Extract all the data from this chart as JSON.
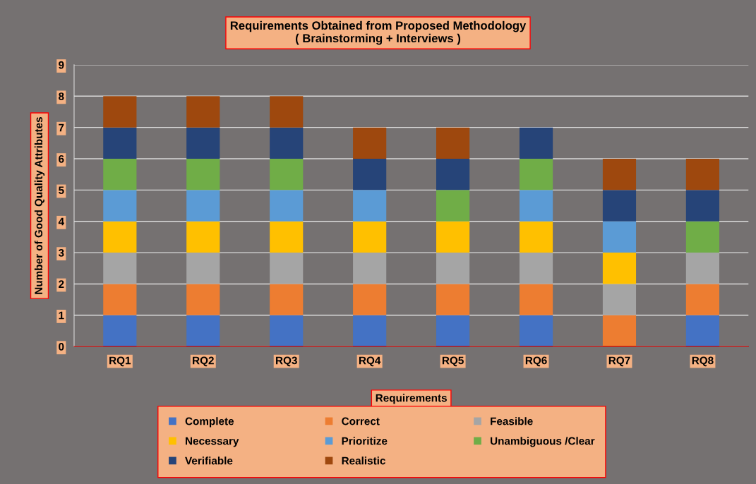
{
  "chart_data": {
    "type": "bar",
    "title": "Requirements Obtained from Proposed Methodology\n( Brainstorming + Interviews )",
    "xlabel": "Requirements",
    "ylabel": "Number of Good Quality Attributes",
    "categories": [
      "RQ1",
      "RQ2",
      "RQ3",
      "RQ4",
      "RQ5",
      "RQ6",
      "RQ7",
      "RQ8"
    ],
    "stacked": true,
    "series": [
      {
        "name": "Complete",
        "color": "#4472c4",
        "values": [
          1,
          1,
          1,
          1,
          1,
          1,
          0,
          1
        ]
      },
      {
        "name": "Correct",
        "color": "#ed7d31",
        "values": [
          1,
          1,
          1,
          1,
          1,
          1,
          1,
          1
        ]
      },
      {
        "name": "Feasible",
        "color": "#a5a5a5",
        "values": [
          1,
          1,
          1,
          1,
          1,
          1,
          1,
          1
        ]
      },
      {
        "name": "Necessary",
        "color": "#ffc000",
        "values": [
          1,
          1,
          1,
          1,
          1,
          1,
          1,
          0
        ]
      },
      {
        "name": "Prioritize",
        "color": "#5b9bd5",
        "values": [
          1,
          1,
          1,
          1,
          0,
          1,
          1,
          0
        ]
      },
      {
        "name": "Unambiguous /Clear",
        "color": "#70ad47",
        "values": [
          1,
          1,
          1,
          0,
          1,
          1,
          0,
          1
        ]
      },
      {
        "name": "Verifiable",
        "color": "#264478",
        "values": [
          1,
          1,
          1,
          1,
          1,
          1,
          1,
          1
        ]
      },
      {
        "name": "Realistic",
        "color": "#9e480e",
        "values": [
          1,
          1,
          1,
          1,
          1,
          0,
          1,
          1
        ]
      }
    ],
    "ylim": [
      0,
      9
    ],
    "yticks": [
      0,
      1,
      2,
      3,
      4,
      5,
      6,
      7,
      8,
      9
    ],
    "grid": "y",
    "legend": "bottom"
  }
}
